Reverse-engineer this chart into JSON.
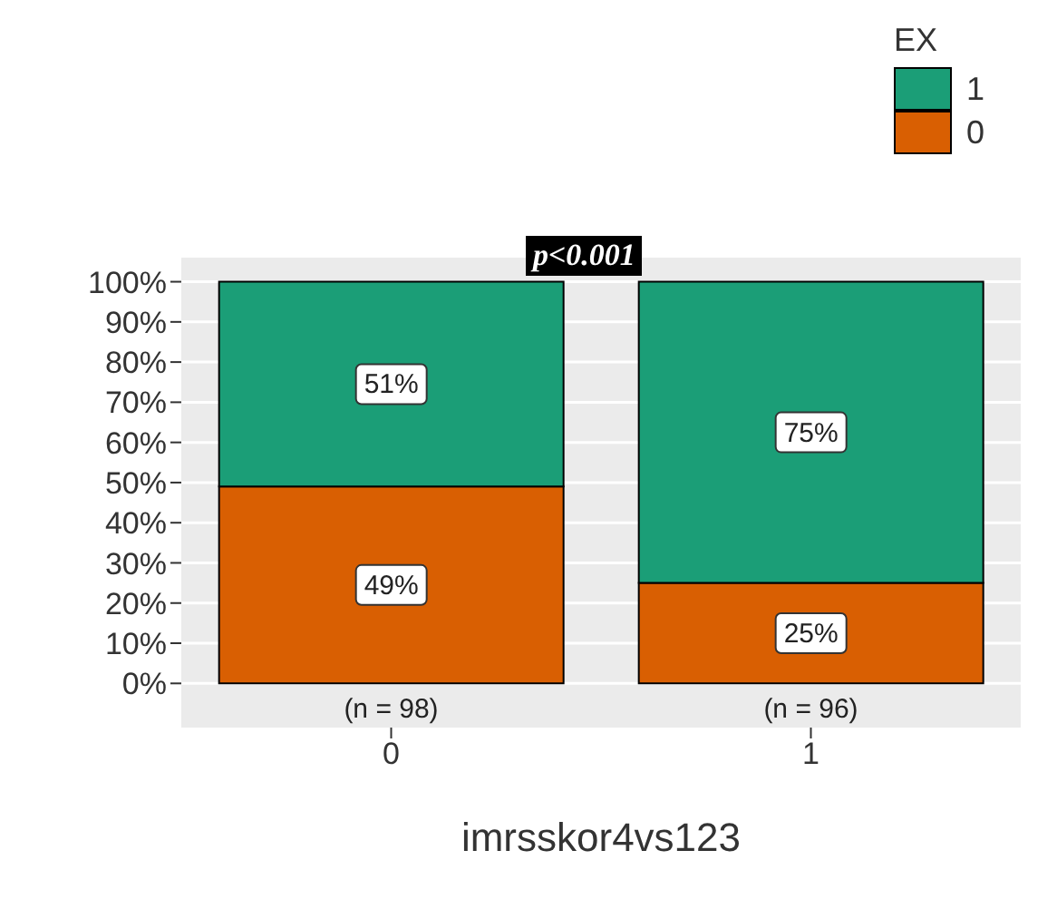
{
  "chart_data": {
    "type": "bar",
    "stacked": true,
    "categories": [
      "0",
      "1"
    ],
    "series": [
      {
        "name": "0",
        "color": "#d95f02",
        "values": [
          49,
          25
        ],
        "value_labels": [
          "49%",
          "25%"
        ]
      },
      {
        "name": "1",
        "color": "#1b9e77",
        "values": [
          51,
          75
        ],
        "value_labels": [
          "51%",
          "75%"
        ]
      }
    ],
    "xlabel": "imrsskor4vs123",
    "legend_title": "EX",
    "legend": "top right",
    "grid": "y",
    "ylim": [
      -11,
      106
    ],
    "yticks": [
      {
        "value": 0,
        "label": "0%"
      },
      {
        "value": 10,
        "label": "10%"
      },
      {
        "value": 20,
        "label": "20%"
      },
      {
        "value": 30,
        "label": "30%"
      },
      {
        "value": 40,
        "label": "40%"
      },
      {
        "value": 50,
        "label": "50%"
      },
      {
        "value": 60,
        "label": "60%"
      },
      {
        "value": 70,
        "label": "70%"
      },
      {
        "value": 80,
        "label": "80%"
      },
      {
        "value": 90,
        "label": "90%"
      },
      {
        "value": 100,
        "label": "100%"
      }
    ],
    "annotations": [
      "p<0.001",
      "(n = 98)",
      "(n = 96)"
    ]
  }
}
